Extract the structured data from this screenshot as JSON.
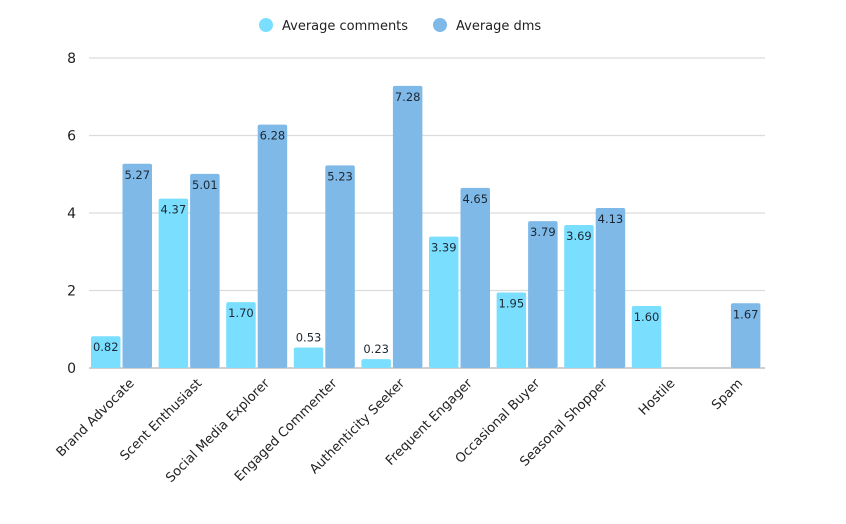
{
  "chart_data": {
    "type": "bar",
    "categories": [
      "Brand Advocate",
      "Scent Enthusiast",
      "Social Media Explorer",
      "Engaged Commenter",
      "Authenticity Seeker",
      "Frequent Engager",
      "Occasional Buyer",
      "Seasonal Shopper",
      "Hostile",
      "Spam"
    ],
    "series": [
      {
        "name": "Average comments",
        "color": "#7adfff",
        "values": [
          0.82,
          4.37,
          1.7,
          0.53,
          0.23,
          3.39,
          1.95,
          3.69,
          1.6,
          0
        ],
        "labels": [
          "0.82",
          "4.37",
          "1.70",
          "0.53",
          "0.23",
          "3.39",
          "1.95",
          "3.69",
          "1.60",
          ""
        ]
      },
      {
        "name": "Average dms",
        "color": "#7fb9e8",
        "values": [
          5.27,
          5.01,
          6.28,
          5.23,
          7.28,
          4.65,
          3.79,
          4.13,
          0,
          1.67
        ],
        "labels": [
          "5.27",
          "5.01",
          "6.28",
          "5.23",
          "7.28",
          "4.65",
          "3.79",
          "4.13",
          "",
          "1.67"
        ]
      }
    ],
    "yticks": [
      "0",
      "2",
      "4",
      "6",
      "8"
    ],
    "ylim": [
      0,
      8
    ],
    "grid": true,
    "legend": "top-center",
    "title": "",
    "xlabel": "",
    "ylabel": ""
  }
}
